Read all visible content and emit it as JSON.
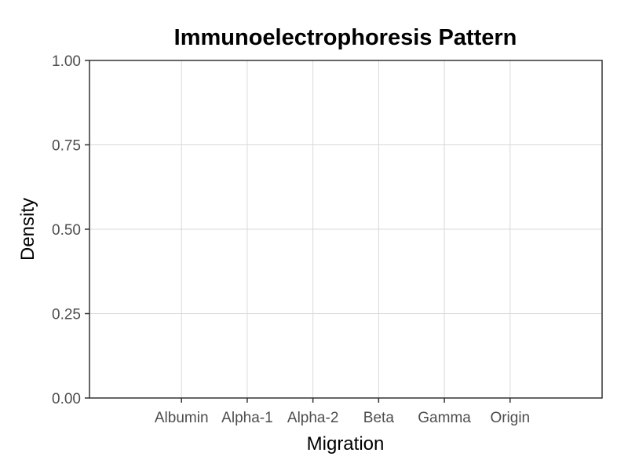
{
  "chart_data": {
    "type": "scatter",
    "title": "Immunoelectrophoresis Pattern",
    "xlabel": "Migration",
    "ylabel": "Density",
    "categories": [
      "Albumin",
      "Alpha-1",
      "Alpha-2",
      "Beta",
      "Gamma",
      "Origin"
    ],
    "y_ticks": [
      "0.00",
      "0.25",
      "0.50",
      "0.75",
      "1.00"
    ],
    "y_tick_values": [
      0,
      0.25,
      0.5,
      0.75,
      1.0
    ],
    "ylim": [
      0,
      1
    ],
    "grid": true,
    "legend": "none",
    "series": []
  }
}
